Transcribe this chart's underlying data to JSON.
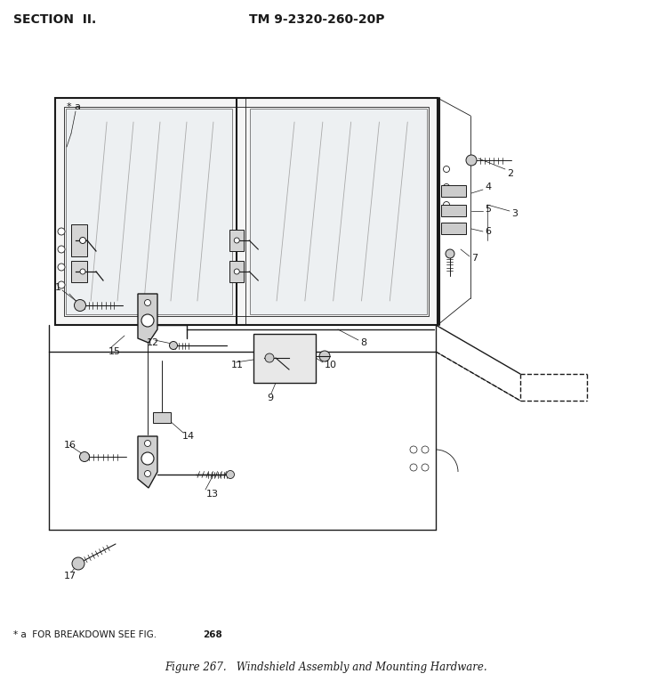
{
  "title_left": "SECTION  II.",
  "title_right": "TM 9-2320-260-20P",
  "footer_note_plain": "* a  FOR BREAKDOWN SEE FIG. ",
  "footer_note_bold": "268",
  "caption": "Figure 267.   Windshield Assembly and Mounting Hardware.",
  "background_color": "#ffffff",
  "text_color": "#000000",
  "fig_width": 7.32,
  "fig_height": 7.75,
  "dpi": 100
}
